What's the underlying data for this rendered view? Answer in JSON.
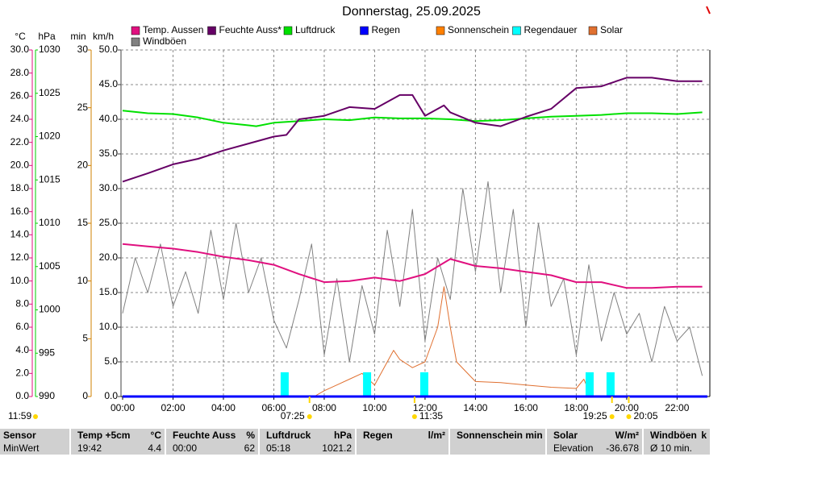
{
  "chart_data": {
    "type": "line",
    "title": "Donnerstag, 25.09.2025",
    "xlim": [
      0,
      23.3
    ],
    "xticks": [
      {
        "value": 0,
        "label": "00:00"
      },
      {
        "value": 2,
        "label": "02:00"
      },
      {
        "value": 4,
        "label": "04:00"
      },
      {
        "value": 6,
        "label": "06:00"
      },
      {
        "value": 8,
        "label": "08:00"
      },
      {
        "value": 10,
        "label": "10:00"
      },
      {
        "value": 12,
        "label": "12:00"
      },
      {
        "value": 14,
        "label": "14:00"
      },
      {
        "value": 16,
        "label": "16:00"
      },
      {
        "value": 18,
        "label": "18:00"
      },
      {
        "value": 20,
        "label": "20:00"
      },
      {
        "value": 22,
        "label": "22:00"
      }
    ],
    "grid": true,
    "y_axes": [
      {
        "label": "°C",
        "color": "#e0107f",
        "lim": [
          0,
          30
        ],
        "ticks": [
          {
            "value": 0,
            "label": "0.0"
          },
          {
            "value": 2,
            "label": "2.0"
          },
          {
            "value": 4,
            "label": "4.0"
          },
          {
            "value": 6,
            "label": "6.0"
          },
          {
            "value": 8,
            "label": "8.0"
          },
          {
            "value": 10,
            "label": "10.0"
          },
          {
            "value": 12,
            "label": "12.0"
          },
          {
            "value": 14,
            "label": "14.0"
          },
          {
            "value": 16,
            "label": "16.0"
          },
          {
            "value": 18,
            "label": "18.0"
          },
          {
            "value": 20,
            "label": "20.0"
          },
          {
            "value": 22,
            "label": "22.0"
          },
          {
            "value": 24,
            "label": "24.0"
          },
          {
            "value": 26,
            "label": "26.0"
          },
          {
            "value": 28,
            "label": "28.0"
          },
          {
            "value": 30,
            "label": "30.0"
          }
        ]
      },
      {
        "label": "hPa",
        "color": "#00cc00",
        "lim": [
          990,
          1030
        ],
        "ticks": [
          990,
          995,
          1000,
          1005,
          1010,
          1015,
          1020,
          1025,
          1030
        ]
      },
      {
        "label": "min",
        "color": "#d08000",
        "lim": [
          0,
          30
        ],
        "ticks": [
          0,
          5,
          10,
          15,
          20,
          25,
          30
        ]
      },
      {
        "label": "km/h",
        "color": "#404040",
        "lim": [
          0,
          50
        ],
        "ticks": [
          {
            "value": 0,
            "label": "0.0"
          },
          {
            "value": 5,
            "label": "5.0"
          },
          {
            "value": 10,
            "label": "10.0"
          },
          {
            "value": 15,
            "label": "15.0"
          },
          {
            "value": 20,
            "label": "20.0"
          },
          {
            "value": 25,
            "label": "25.0"
          },
          {
            "value": 30,
            "label": "30.0"
          },
          {
            "value": 35,
            "label": "35.0"
          },
          {
            "value": 40,
            "label": "40.0"
          },
          {
            "value": 45,
            "label": "45.0"
          },
          {
            "value": 50,
            "label": "50.0"
          }
        ]
      },
      {
        "lim": [
          0,
          100
        ]
      }
    ],
    "series": [
      {
        "name": "Temp. Aussen",
        "color": "#e0107f",
        "axis": 0,
        "type": "line",
        "x": [
          0,
          1,
          2,
          3,
          4,
          5,
          6,
          7,
          8,
          9,
          10,
          11,
          12,
          13,
          14,
          15,
          16,
          17,
          18,
          19,
          20,
          21,
          22,
          23
        ],
        "values": [
          13.2,
          13.0,
          12.8,
          12.5,
          12.1,
          11.8,
          11.4,
          10.6,
          9.9,
          10.0,
          10.3,
          10.0,
          10.6,
          11.9,
          11.3,
          11.1,
          10.8,
          10.5,
          9.9,
          9.9,
          9.4,
          9.4,
          9.5,
          9.5
        ]
      },
      {
        "name": "Feuchte Auss*",
        "color": "#660066",
        "axis": 4,
        "type": "line",
        "x": [
          0,
          1,
          2,
          3,
          4,
          5,
          6,
          6.5,
          7,
          8,
          9,
          10,
          11,
          11.5,
          12,
          12.75,
          13,
          14,
          15,
          16,
          17,
          18,
          19,
          20,
          21,
          22,
          23
        ],
        "values": [
          62,
          64.4,
          67,
          68.6,
          71,
          73,
          75,
          75.5,
          80,
          81,
          83.5,
          83,
          87,
          87,
          81,
          84,
          82,
          79,
          78,
          80.7,
          83,
          89,
          89.5,
          92,
          92,
          91,
          91
        ]
      },
      {
        "name": "Luftdruck",
        "color": "#00e000",
        "axis": 1,
        "type": "line",
        "x": [
          0,
          1,
          2,
          3,
          4,
          5,
          5.3,
          6,
          7,
          8,
          9,
          10,
          11,
          12,
          13,
          14,
          15,
          16,
          17,
          18,
          19,
          20,
          21,
          22,
          23
        ],
        "values": [
          1023.0,
          1022.7,
          1022.6,
          1022.2,
          1021.6,
          1021.3,
          1021.2,
          1021.6,
          1021.8,
          1022.0,
          1021.9,
          1022.2,
          1022.1,
          1022.1,
          1022.0,
          1021.8,
          1021.9,
          1022.1,
          1022.3,
          1022.4,
          1022.5,
          1022.7,
          1022.7,
          1022.6,
          1022.8
        ]
      },
      {
        "name": "Regen",
        "color": "#0000ff",
        "axis": 2,
        "type": "line",
        "x": [
          0,
          23.2
        ],
        "values": [
          0,
          0
        ]
      },
      {
        "name": "Sonnenschein",
        "color": "#ff8000",
        "axis": 2,
        "type": "line",
        "x": [],
        "values": []
      },
      {
        "name": "Regendauer",
        "color": "#00ffff",
        "axis": 2,
        "type": "bar",
        "x": [
          6.43,
          9.7,
          11.97,
          18.53,
          19.36
        ],
        "values": [
          2.1,
          2.1,
          2.1,
          2.1,
          2.1
        ]
      },
      {
        "name": "Solar",
        "color": "#e07030",
        "axis": 2,
        "type": "line",
        "x": [
          0,
          7.6,
          8,
          8.5,
          9,
          9.5,
          10,
          10.75,
          11,
          11.5,
          12,
          12.5,
          12.75,
          13,
          13.25,
          14,
          15,
          16,
          17,
          18,
          18.3,
          18.6,
          23
        ],
        "values": [
          0,
          0,
          0.5,
          1.0,
          1.5,
          2.0,
          1.0,
          4.0,
          3.2,
          2.5,
          3.0,
          6.0,
          9.5,
          6.0,
          3.0,
          1.3,
          1.2,
          1.0,
          0.8,
          0.7,
          1.5,
          0,
          0
        ]
      },
      {
        "name": "Windböen",
        "color": "#808080",
        "axis": 3,
        "type": "line",
        "x": [
          0,
          0.5,
          1,
          1.5,
          2,
          2.5,
          3,
          3.5,
          4,
          4.5,
          5,
          5.5,
          6,
          6.5,
          7,
          7.5,
          8,
          8.5,
          9,
          9.5,
          10,
          10.5,
          11,
          11.5,
          12,
          12.5,
          13,
          13.5,
          14,
          14.5,
          15,
          15.5,
          16,
          16.5,
          17,
          17.5,
          18,
          18.5,
          19,
          19.5,
          20,
          20.5,
          21,
          21.5,
          22,
          22.5,
          23
        ],
        "values": [
          12,
          20,
          15,
          22,
          13,
          18,
          12,
          24,
          14,
          25,
          15,
          20,
          11,
          7,
          14,
          22,
          6,
          17,
          5,
          16,
          9,
          24,
          13,
          27,
          8,
          20,
          14,
          30,
          18,
          31,
          15,
          27,
          10,
          25,
          13,
          17,
          6,
          19,
          8,
          15,
          9,
          12,
          5,
          13,
          8,
          10,
          3
        ]
      }
    ],
    "annotations": [
      {
        "x": 7.4167,
        "text": "07:25"
      },
      {
        "x": 11.583,
        "text": "11:35"
      },
      {
        "x": 19.4167,
        "text": "19:25"
      },
      {
        "x": 20.083,
        "text": "20:05"
      }
    ],
    "daylight": "11:59"
  },
  "table": {
    "rows": [
      [
        "Sensor",
        [
          "Temp +5cm",
          "°C"
        ],
        [
          "Feuchte Auss",
          "%"
        ],
        [
          "Luftdruck",
          "hPa"
        ],
        [
          "Regen",
          "l/m²"
        ],
        [
          "Sonnenschein min"
        ],
        [
          "Solar",
          "W/m²"
        ],
        [
          "Windböen",
          "k"
        ]
      ],
      [
        "MinWert",
        [
          "19:42",
          "4.4"
        ],
        [
          "00:00",
          "62"
        ],
        [
          "05:18",
          "1021.2"
        ],
        [],
        [],
        [
          "Elevation",
          "-36.678"
        ],
        [
          "Ø 10 min."
        ]
      ]
    ]
  }
}
